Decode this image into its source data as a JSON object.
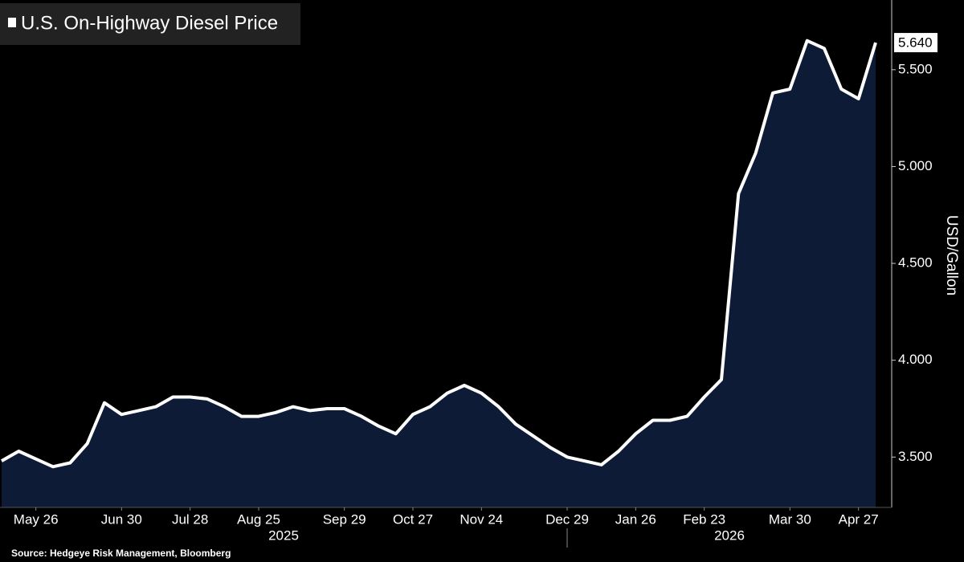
{
  "chart_data": {
    "type": "area",
    "title": "U.S. On-Highway Diesel Price",
    "y_axis_label": "USD/Gallon",
    "source": "Source: Hedgeye Risk Management, Bloomberg",
    "x": [
      "2025-05-12",
      "2025-05-19",
      "2025-05-26",
      "2025-06-02",
      "2025-06-09",
      "2025-06-16",
      "2025-06-23",
      "2025-06-30",
      "2025-07-07",
      "2025-07-14",
      "2025-07-21",
      "2025-07-28",
      "2025-08-04",
      "2025-08-11",
      "2025-08-18",
      "2025-08-25",
      "2025-09-01",
      "2025-09-08",
      "2025-09-15",
      "2025-09-22",
      "2025-09-29",
      "2025-10-06",
      "2025-10-13",
      "2025-10-20",
      "2025-10-27",
      "2025-11-03",
      "2025-11-10",
      "2025-11-17",
      "2025-11-24",
      "2025-12-01",
      "2025-12-08",
      "2025-12-15",
      "2025-12-22",
      "2025-12-29",
      "2026-01-05",
      "2026-01-12",
      "2026-01-19",
      "2026-01-26",
      "2026-02-02",
      "2026-02-09",
      "2026-02-16",
      "2026-02-23",
      "2026-03-02",
      "2026-03-09",
      "2026-03-16",
      "2026-03-23",
      "2026-03-30",
      "2026-04-06",
      "2026-04-13",
      "2026-04-20",
      "2026-04-27",
      "2026-05-04"
    ],
    "series": [
      {
        "name": "U.S. On-Highway Diesel Price",
        "color": "#ffffff",
        "fill": "#0e1b36",
        "values": [
          3.48,
          3.53,
          3.49,
          3.45,
          3.47,
          3.57,
          3.78,
          3.72,
          3.74,
          3.76,
          3.81,
          3.81,
          3.8,
          3.76,
          3.71,
          3.71,
          3.73,
          3.76,
          3.74,
          3.75,
          3.75,
          3.71,
          3.66,
          3.62,
          3.72,
          3.76,
          3.83,
          3.87,
          3.83,
          3.76,
          3.67,
          3.61,
          3.55,
          3.5,
          3.48,
          3.46,
          3.53,
          3.62,
          3.69,
          3.69,
          3.71,
          3.81,
          3.9,
          4.86,
          5.07,
          5.38,
          5.4,
          5.65,
          5.61,
          5.4,
          5.35,
          5.64
        ],
        "value_labels": [
          null,
          null,
          null,
          null,
          null,
          null,
          null,
          null,
          null,
          null,
          null,
          null,
          null,
          null,
          null,
          null,
          null,
          null,
          null,
          null,
          null,
          null,
          null,
          null,
          null,
          null,
          null,
          null,
          null,
          null,
          null,
          null,
          null,
          null,
          null,
          null,
          null,
          null,
          null,
          null,
          null,
          null,
          null,
          null,
          null,
          null,
          null,
          null,
          null,
          null,
          null,
          "5.640"
        ]
      }
    ],
    "xlim": [
      "2025-05-12",
      "2026-05-04"
    ],
    "xticks": [
      {
        "value": "2025-05-26",
        "label": "May 26"
      },
      {
        "value": "2025-06-30",
        "label": "Jun 30"
      },
      {
        "value": "2025-07-28",
        "label": "Jul 28"
      },
      {
        "value": "2025-08-25",
        "label": "Aug 25"
      },
      {
        "value": "2025-09-29",
        "label": "Sep 29"
      },
      {
        "value": "2025-10-27",
        "label": "Oct 27"
      },
      {
        "value": "2025-11-24",
        "label": "Nov 24"
      },
      {
        "value": "2025-12-29",
        "label": "Dec 29"
      },
      {
        "value": "2026-01-26",
        "label": "Jan 26"
      },
      {
        "value": "2026-02-23",
        "label": "Feb 23"
      },
      {
        "value": "2026-03-30",
        "label": "Mar 30"
      },
      {
        "value": "2026-04-27",
        "label": "Apr 27"
      }
    ],
    "year_labels": [
      "2025",
      "2026"
    ],
    "ylim": [
      3.24,
      5.86
    ],
    "yticks": [
      {
        "value": 3.5,
        "label": "3.500"
      },
      {
        "value": 4.0,
        "label": "4.000"
      },
      {
        "value": 4.5,
        "label": "4.500"
      },
      {
        "value": 5.0,
        "label": "5.000"
      },
      {
        "value": 5.5,
        "label": "5.500"
      }
    ]
  }
}
